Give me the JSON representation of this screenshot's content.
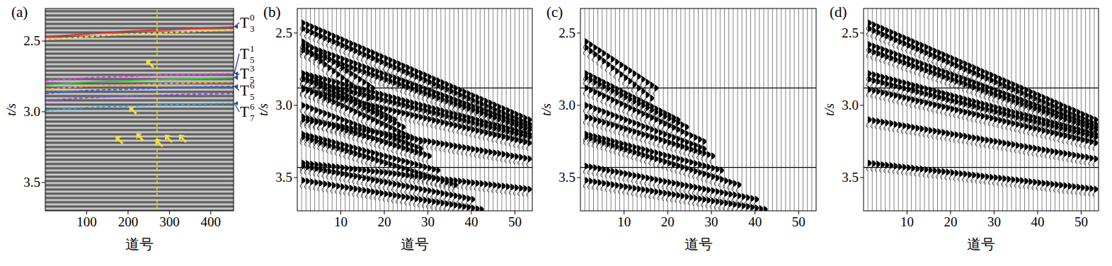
{
  "chart_data": [
    {
      "type": "seismic_section",
      "panel": "(a)",
      "x_label": "道号",
      "y_label": "t/s",
      "xlim": [
        0,
        455
      ],
      "ylim": [
        2.27,
        3.7
      ],
      "xticks": [
        100,
        200,
        300,
        400
      ],
      "yticks": [
        2.5,
        {
          "value": 3.0,
          "label": "3.0"
        },
        3.5
      ],
      "x": [
        0,
        100,
        200,
        300,
        455
      ],
      "horizons": [
        {
          "color": "#e0302a",
          "line_style": "solid",
          "values": [
            2.47,
            2.45,
            2.43,
            2.42,
            2.4
          ]
        },
        {
          "color": "#f0e040",
          "line_style": "dashed",
          "values": [
            2.49,
            2.47,
            2.45,
            2.44,
            2.42
          ]
        },
        {
          "color": "#e040e0",
          "line_style": "dashed",
          "values": [
            2.78,
            2.76,
            2.75,
            2.74,
            2.73
          ]
        },
        {
          "color": "#40c040",
          "line_style": "solid",
          "values": [
            2.81,
            2.79,
            2.78,
            2.77,
            2.76
          ]
        },
        {
          "color": "#f0a030",
          "line_style": "dashed",
          "values": [
            2.84,
            2.82,
            2.81,
            2.8,
            2.79
          ]
        },
        {
          "color": "#4060e0",
          "line_style": "dashed",
          "values": [
            2.87,
            2.85,
            2.84,
            2.83,
            2.82
          ]
        },
        {
          "color": "#9050d0",
          "line_style": "dashed",
          "values": [
            2.92,
            2.9,
            2.89,
            2.88,
            2.87
          ]
        },
        {
          "color": "#30a0e0",
          "line_style": "dashed",
          "values": [
            2.99,
            2.97,
            2.96,
            2.95,
            2.94
          ]
        }
      ],
      "labels": [
        {
          "text": "T",
          "sub": "3",
          "sup": "0",
          "t": 2.37,
          "horizon": 0
        },
        {
          "text": "T",
          "sub": "5",
          "sup": "1",
          "t": 2.59,
          "horizon": 2
        },
        {
          "text": "T",
          "sub": "5",
          "sup": "3",
          "t": 2.73,
          "horizon": 3
        },
        {
          "text": "T",
          "sub": "5",
          "sup": "6",
          "t": 2.85,
          "horizon": 5
        },
        {
          "text": "T",
          "sub": "7",
          "sup": "6",
          "t": 3.0,
          "horizon": 7
        }
      ],
      "trace_line": {
        "x": 270,
        "color": "#f0e000",
        "line_style": "dashed"
      },
      "arrows": {
        "x": [
          244,
          203,
          170,
          220,
          266,
          289,
          323
        ],
        "t": [
          2.63,
          2.96,
          3.17,
          3.15,
          3.19,
          3.16,
          3.16
        ],
        "color": "#f5e13a"
      }
    },
    {
      "type": "wiggle",
      "panel": "(b)",
      "x_label": "道号",
      "y_label": "t/s",
      "xlim": [
        0,
        54
      ],
      "ylim": [
        2.33,
        3.73
      ],
      "xticks": [
        10,
        20,
        30,
        40,
        50
      ],
      "yticks": [
        2.5,
        {
          "value": 3.0,
          "label": "3.0"
        },
        3.5
      ],
      "traces": 53,
      "hlines": [
        2.88,
        3.43
      ],
      "events": [
        {
          "t": [
            2.43,
            3.1
          ],
          "traces": [
            1,
            53
          ]
        },
        {
          "t": [
            2.47,
            3.13
          ],
          "traces": [
            1,
            53
          ]
        },
        {
          "t": [
            2.58,
            3.15
          ],
          "traces": [
            1,
            53
          ]
        },
        {
          "t": [
            2.62,
            3.17
          ],
          "traces": [
            1,
            53
          ]
        },
        {
          "t": [
            2.78,
            3.2
          ],
          "traces": [
            1,
            53
          ]
        },
        {
          "t": [
            2.82,
            3.22
          ],
          "traces": [
            1,
            53
          ]
        },
        {
          "t": [
            2.89,
            3.26
          ],
          "traces": [
            1,
            53
          ]
        },
        {
          "t": [
            3.1,
            3.37
          ],
          "traces": [
            1,
            53
          ]
        },
        {
          "t": [
            3.4,
            3.58
          ],
          "traces": [
            1,
            53
          ]
        },
        {
          "t": [
            2.56,
            2.88
          ],
          "traces": [
            1,
            17
          ]
        },
        {
          "t": [
            2.6,
            2.95
          ],
          "traces": [
            1,
            16
          ]
        },
        {
          "t": [
            2.78,
            3.1
          ],
          "traces": [
            1,
            22
          ]
        },
        {
          "t": [
            2.81,
            3.15
          ],
          "traces": [
            1,
            24
          ]
        },
        {
          "t": [
            2.88,
            3.25
          ],
          "traces": [
            1,
            28
          ]
        },
        {
          "t": [
            3.0,
            3.3
          ],
          "traces": [
            1,
            28
          ]
        },
        {
          "t": [
            3.08,
            3.35
          ],
          "traces": [
            1,
            30
          ]
        },
        {
          "t": [
            3.2,
            3.45
          ],
          "traces": [
            1,
            32
          ]
        },
        {
          "t": [
            3.22,
            3.55
          ],
          "traces": [
            1,
            36
          ]
        },
        {
          "t": [
            3.42,
            3.65
          ],
          "traces": [
            1,
            40
          ]
        },
        {
          "t": [
            3.52,
            3.72
          ],
          "traces": [
            1,
            42
          ]
        }
      ]
    },
    {
      "type": "wiggle",
      "panel": "(c)",
      "x_label": "道号",
      "y_label": "t/s",
      "xlim": [
        0,
        54
      ],
      "ylim": [
        2.33,
        3.73
      ],
      "xticks": [
        10,
        20,
        30,
        40,
        50
      ],
      "yticks": [
        2.5,
        {
          "value": 3.0,
          "label": "3.0"
        },
        3.5
      ],
      "traces": 53,
      "hlines": [
        2.88,
        3.43
      ],
      "events": [
        {
          "t": [
            2.56,
            2.88
          ],
          "traces": [
            1,
            17
          ]
        },
        {
          "t": [
            2.6,
            2.95
          ],
          "traces": [
            1,
            16
          ]
        },
        {
          "t": [
            2.78,
            3.1
          ],
          "traces": [
            1,
            22
          ]
        },
        {
          "t": [
            2.81,
            3.15
          ],
          "traces": [
            1,
            24
          ]
        },
        {
          "t": [
            2.88,
            3.25
          ],
          "traces": [
            1,
            28
          ]
        },
        {
          "t": [
            3.0,
            3.3
          ],
          "traces": [
            1,
            28
          ]
        },
        {
          "t": [
            3.08,
            3.35
          ],
          "traces": [
            1,
            30
          ]
        },
        {
          "t": [
            3.2,
            3.45
          ],
          "traces": [
            1,
            32
          ]
        },
        {
          "t": [
            3.22,
            3.55
          ],
          "traces": [
            1,
            36
          ]
        },
        {
          "t": [
            3.42,
            3.65
          ],
          "traces": [
            1,
            40
          ]
        },
        {
          "t": [
            3.52,
            3.72
          ],
          "traces": [
            1,
            42
          ]
        }
      ]
    },
    {
      "type": "wiggle",
      "panel": "(d)",
      "x_label": "道号",
      "y_label": "t/s",
      "xlim": [
        0,
        54
      ],
      "ylim": [
        2.33,
        3.73
      ],
      "xticks": [
        10,
        20,
        30,
        40,
        50
      ],
      "yticks": [
        2.5,
        {
          "value": 3.0,
          "label": "3.0"
        },
        3.5
      ],
      "traces": 53,
      "hlines": [
        2.88,
        3.43
      ],
      "events": [
        {
          "t": [
            2.43,
            3.1
          ],
          "traces": [
            1,
            53
          ]
        },
        {
          "t": [
            2.47,
            3.13
          ],
          "traces": [
            1,
            53
          ]
        },
        {
          "t": [
            2.58,
            3.15
          ],
          "traces": [
            1,
            53
          ]
        },
        {
          "t": [
            2.62,
            3.17
          ],
          "traces": [
            1,
            53
          ]
        },
        {
          "t": [
            2.78,
            3.2
          ],
          "traces": [
            1,
            53
          ]
        },
        {
          "t": [
            2.82,
            3.22
          ],
          "traces": [
            1,
            53
          ]
        },
        {
          "t": [
            2.89,
            3.26
          ],
          "traces": [
            1,
            53
          ]
        },
        {
          "t": [
            3.1,
            3.37
          ],
          "traces": [
            1,
            53
          ]
        },
        {
          "t": [
            3.4,
            3.58
          ],
          "traces": [
            1,
            53
          ]
        }
      ]
    }
  ]
}
